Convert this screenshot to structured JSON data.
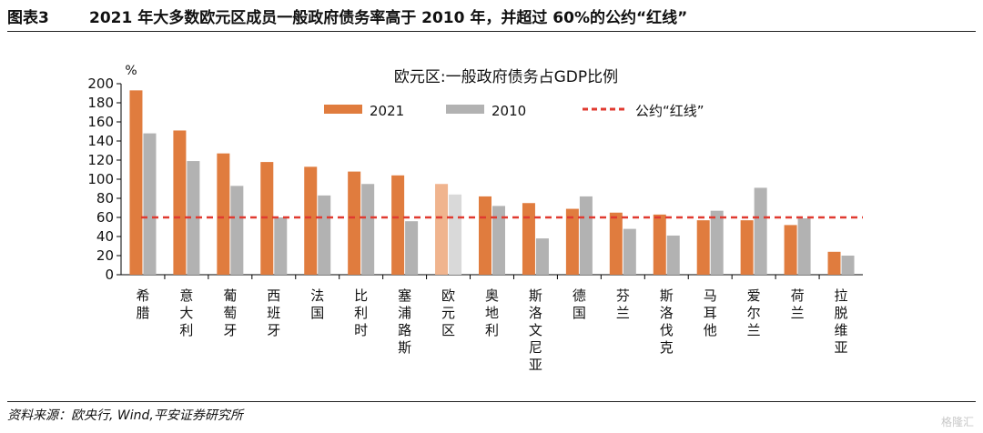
{
  "header": {
    "figure_label": "图表3",
    "title": "2021 年大多数欧元区成员一般政府债务率高于 2010 年，并超过 60%的公约“红线”"
  },
  "footer": {
    "source": "资料来源：欧央行, Wind,平安证券研究所"
  },
  "watermark": {
    "text": "格隆汇"
  },
  "colors": {
    "s2021": "#e07c3e",
    "s2010": "#b2b2b2",
    "s2021_highlight": "#f0b48e",
    "s2010_highlight": "#d9d9d9",
    "redline": "#e03a30"
  },
  "chart_data": {
    "type": "bar",
    "title": "欧元区:一般政府债务占GDP比例",
    "ylabel": "%",
    "ylim": [
      0,
      200
    ],
    "yticks": [
      0,
      20,
      40,
      60,
      80,
      100,
      120,
      140,
      160,
      180,
      200
    ],
    "grid": false,
    "legend_position": "top",
    "categories": [
      "希腊",
      "意大利",
      "葡萄牙",
      "西班牙",
      "法国",
      "比利时",
      "塞浦路斯",
      "欧元区",
      "奥地利",
      "斯洛文尼亚",
      "德国",
      "芬兰",
      "斯洛伐克",
      "马耳他",
      "爱尔兰",
      "荷兰",
      "拉脱维亚"
    ],
    "highlight_category": "欧元区",
    "series": [
      {
        "name": "2021",
        "values": [
          193,
          151,
          127,
          118,
          113,
          108,
          104,
          95,
          82,
          75,
          69,
          65,
          63,
          57,
          57,
          52,
          24
        ]
      },
      {
        "name": "2010",
        "values": [
          148,
          119,
          93,
          60,
          83,
          95,
          56,
          84,
          72,
          38,
          82,
          48,
          41,
          67,
          91,
          59,
          20
        ]
      }
    ],
    "reference_line": {
      "name": "公约“红线”",
      "value": 60
    }
  }
}
